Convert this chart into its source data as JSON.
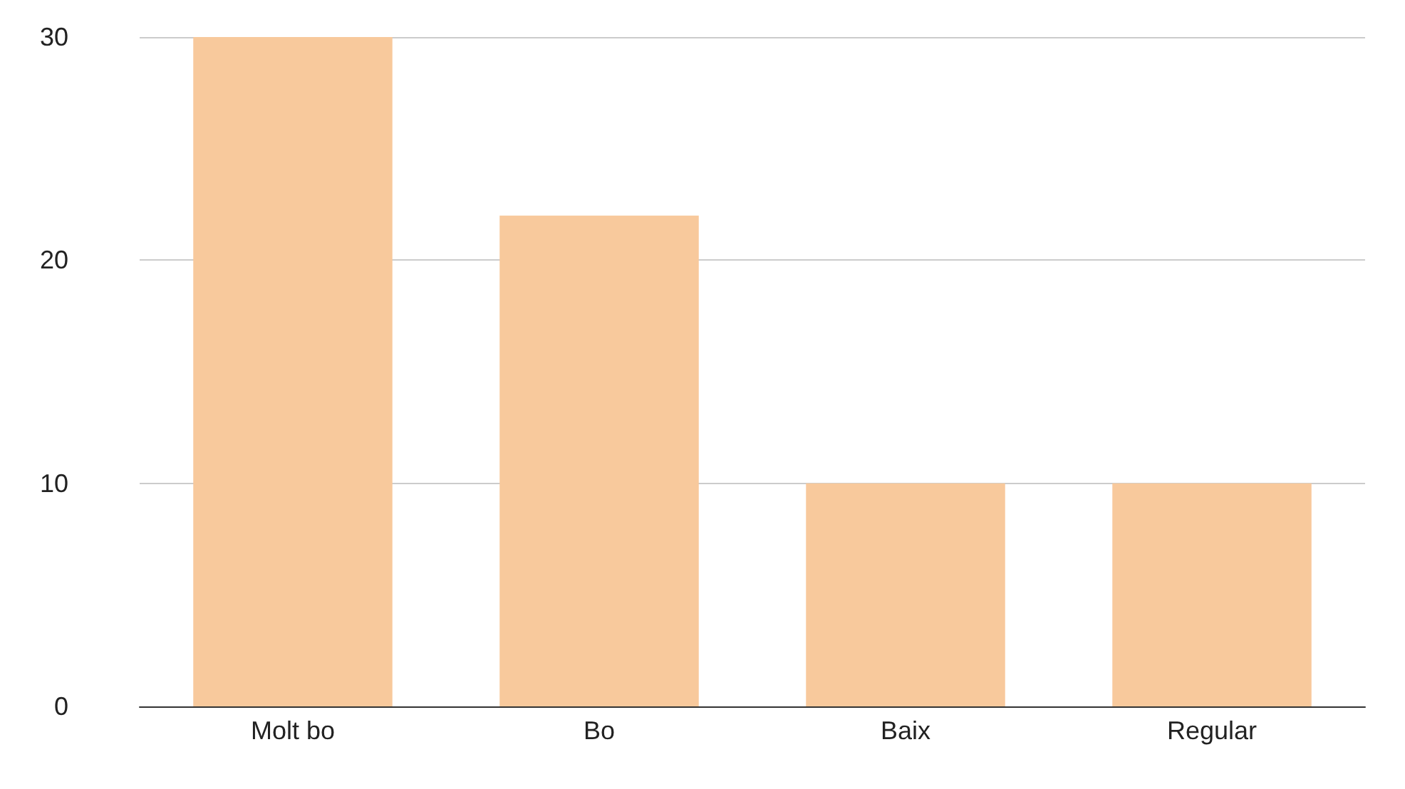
{
  "chart_data": {
    "type": "bar",
    "categories": [
      "Molt bo",
      "Bo",
      "Baix",
      "Regular"
    ],
    "values": [
      30,
      22,
      10,
      10
    ],
    "color": "#f8c99c",
    "ylim": [
      0,
      30
    ],
    "yticks": [
      0,
      10,
      20,
      30
    ],
    "grid": "y"
  }
}
